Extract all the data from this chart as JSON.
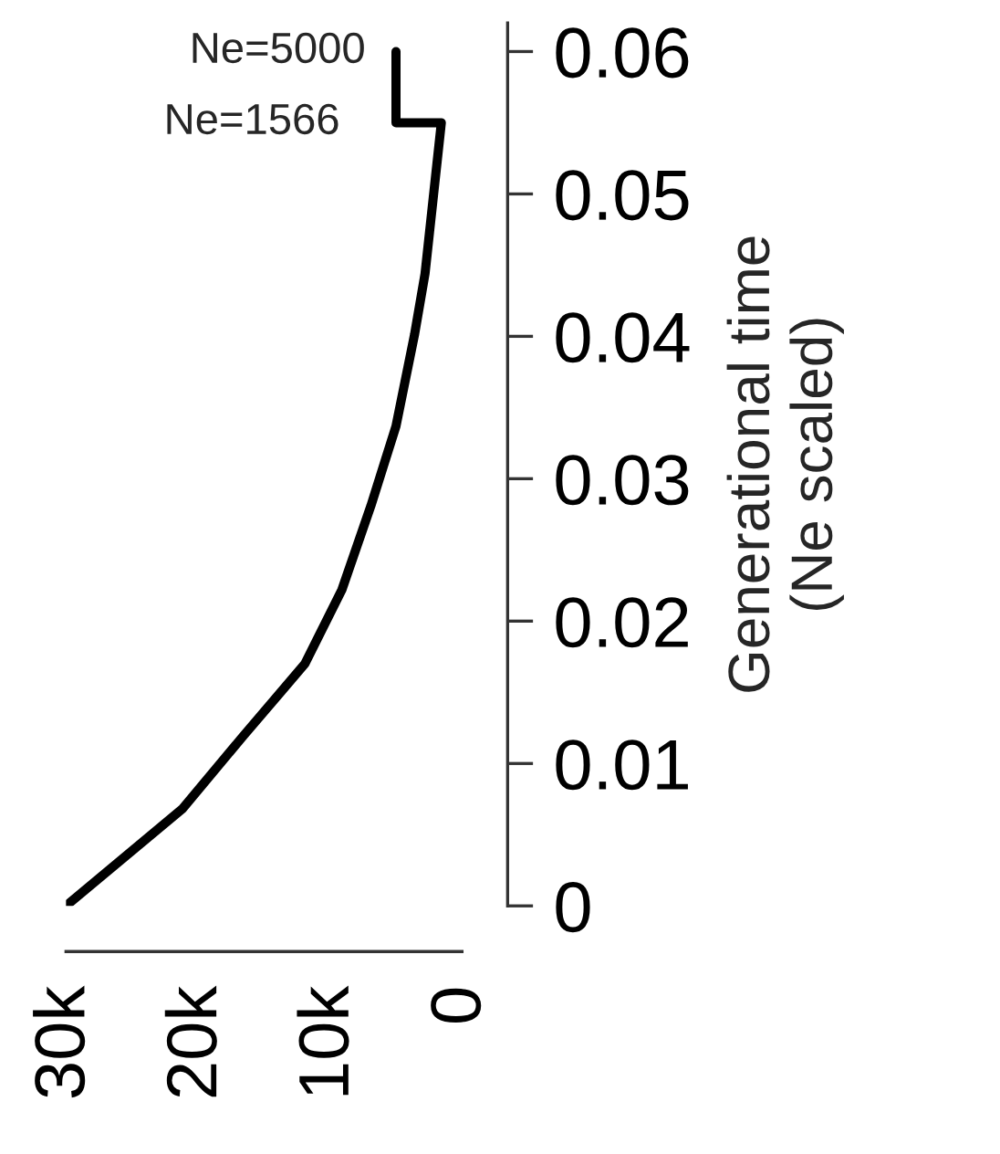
{
  "chart_data": {
    "type": "line",
    "ylabel": "Generational time\n(Ne scaled)",
    "x": [
      30000,
      21200,
      16600,
      11900,
      9100,
      6900,
      5000,
      3600,
      2800,
      1566,
      1566,
      5000,
      5000
    ],
    "series": [
      {
        "color": "#000000",
        "values": [
          0,
          0.0068,
          0.0119,
          0.017,
          0.0222,
          0.0281,
          0.0337,
          0.0401,
          0.0444,
          0.055,
          0.055,
          0.055,
          0.06
        ]
      }
    ],
    "xlim": [
      30000,
      0
    ],
    "xticks": [
      {
        "value": 30000,
        "label": "30k"
      },
      {
        "value": 20000,
        "label": "20k"
      },
      {
        "value": 10000,
        "label": "10k"
      },
      0
    ],
    "ylim": [
      0,
      0.062
    ],
    "yticks": [
      0,
      0.01,
      0.02,
      0.03,
      0.04,
      0.05,
      0.06
    ],
    "annotations": [
      {
        "text": "Ne=5000",
        "x": 5000,
        "y": 0.06
      },
      {
        "text": "Ne=1566",
        "x": 1566,
        "y": 0.055
      }
    ],
    "grid": false,
    "legend": false,
    "line_style": "solid",
    "marker": "none"
  }
}
